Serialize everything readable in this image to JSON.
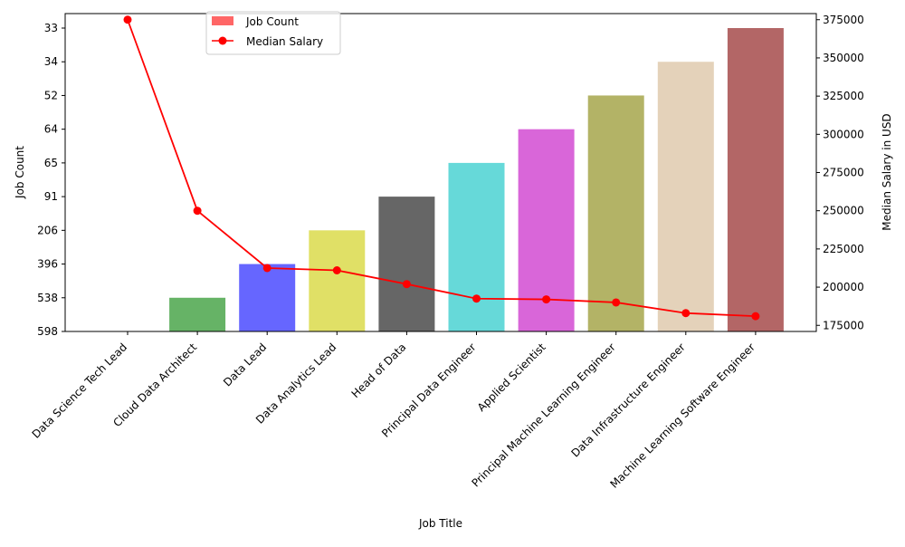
{
  "chart_data": {
    "type": "bar",
    "xlabel": "Job Title",
    "ylabel": "Job Count",
    "y2label": "Median Salary in USD",
    "categories": [
      "Data Science Tech Lead",
      "Cloud Data Architect",
      "Data Lead",
      "Data Analytics Lead",
      "Head of Data",
      "Principal Data Engineer",
      "Applied Scientist",
      "Principal Machine Learning Engineer",
      "Data Infrastructure Engineer",
      "Machine Learning Software Engineer"
    ],
    "y_tick_labels": [
      "598",
      "538",
      "396",
      "206",
      "91",
      "65",
      "64",
      "52",
      "34",
      "33"
    ],
    "series": [
      {
        "name": "Job Count",
        "kind": "bar",
        "values": [
          "598",
          "538",
          "396",
          "206",
          "91",
          "65",
          "64",
          "52",
          "34",
          "33"
        ],
        "colors": [
          "#ff0000",
          "#008000",
          "#0000ff",
          "#cccc00",
          "#000000",
          "#00bfbf",
          "#bf00bf",
          "#808000",
          "#d2b48c",
          "#800000"
        ],
        "opacity": 0.6
      },
      {
        "name": "Median Salary",
        "kind": "line",
        "axis": "right",
        "color": "#ff0000",
        "values": [
          375000,
          250000,
          212500,
          211000,
          202000,
          192500,
          192000,
          190000,
          183000,
          181000
        ]
      }
    ],
    "y2lim": [
      171000,
      379000
    ],
    "y2ticks": [
      175000,
      200000,
      225000,
      250000,
      275000,
      300000,
      325000,
      350000,
      375000
    ],
    "legend_position": "top-left",
    "grid": false
  }
}
